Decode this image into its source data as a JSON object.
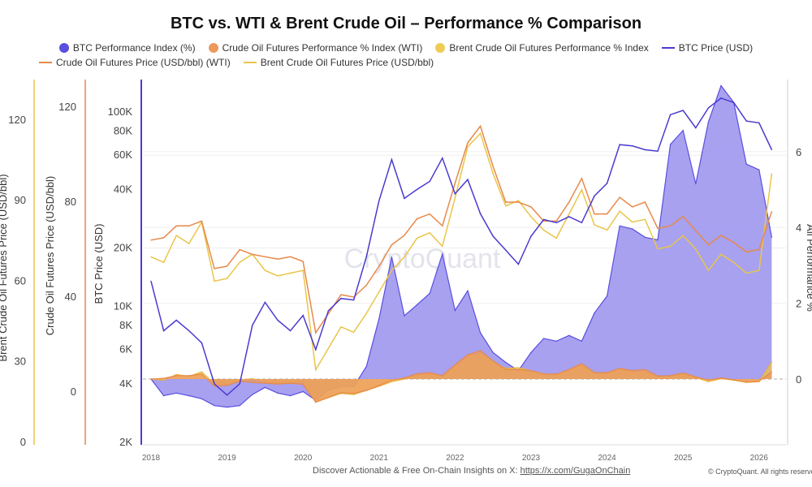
{
  "chart_data": {
    "type": "line",
    "title": "BTC vs. WTI & Brent Crude Oil – Performance % Comparison",
    "legend": [
      {
        "name": "BTC Performance Index (%)",
        "marker": "dot",
        "color": "#5b4fe0"
      },
      {
        "name": "Crude Oil Futures Performance % Index (WTI)",
        "marker": "dot",
        "color": "#ec9a5c"
      },
      {
        "name": "Brent Crude Oil Futures Performance % Index",
        "marker": "dot",
        "color": "#eecb55"
      },
      {
        "name": "BTC Price (USD)",
        "marker": "line",
        "color": "#4a3bd0"
      },
      {
        "name": "Crude Oil Futures Price (USD/bbl) (WTI)",
        "marker": "line",
        "color": "#e8894a"
      },
      {
        "name": "Brent Crude Oil Futures Price (USD/bbl)",
        "marker": "line",
        "color": "#e9c54a"
      }
    ],
    "legend_position": "top",
    "axes": {
      "brent": {
        "label": "Brent Crude Oil Futures Price (USD/bbl)",
        "ticks": [
          "0",
          "30",
          "60",
          "90",
          "120"
        ],
        "range": [
          0,
          120
        ],
        "color": "#e9c54a"
      },
      "wti": {
        "label": "Crude Oil Futures Price (USD/bbl)",
        "ticks": [
          "0",
          "40",
          "80",
          "120"
        ],
        "range": [
          -20,
          120
        ],
        "color": "#e8894a"
      },
      "btc": {
        "label": "BTC Price (USD)",
        "scale": "log",
        "ticks": [
          "2K",
          "4K",
          "6K",
          "8K",
          "10K",
          "20K",
          "40K",
          "60K",
          "80K",
          "100K"
        ],
        "tick_values": [
          2000,
          4000,
          6000,
          8000,
          10000,
          20000,
          40000,
          60000,
          80000,
          100000
        ],
        "range": [
          2000,
          110000
        ],
        "color": "#4a3bd0"
      },
      "perf": {
        "label": "All Performance %",
        "ticks": [
          "0",
          "2",
          "4",
          "6"
        ],
        "range": [
          -1.7,
          7.5
        ]
      },
      "x": {
        "ticks": [
          "2018",
          "2019",
          "2020",
          "2021",
          "2022",
          "2023",
          "2024",
          "2025",
          "2026"
        ]
      }
    },
    "dates": [
      "2018-01",
      "2018-03",
      "2018-05",
      "2018-07",
      "2018-09",
      "2018-11",
      "2019-01",
      "2019-03",
      "2019-05",
      "2019-07",
      "2019-09",
      "2019-11",
      "2020-01",
      "2020-03",
      "2020-05",
      "2020-07",
      "2020-09",
      "2020-11",
      "2021-01",
      "2021-03",
      "2021-05",
      "2021-07",
      "2021-09",
      "2021-11",
      "2022-01",
      "2022-03",
      "2022-05",
      "2022-07",
      "2022-09",
      "2022-11",
      "2023-01",
      "2023-03",
      "2023-05",
      "2023-07",
      "2023-09",
      "2023-11",
      "2024-01",
      "2024-03",
      "2024-05",
      "2024-07",
      "2024-09",
      "2024-11",
      "2025-01",
      "2025-03",
      "2025-05",
      "2025-07",
      "2025-09",
      "2025-11",
      "2026-01",
      "2026-03"
    ],
    "series": [
      {
        "name": "BTC Performance Index (%)",
        "values": [
          0,
          -0.44,
          -0.37,
          -0.44,
          -0.52,
          -0.7,
          -0.74,
          -0.7,
          -0.41,
          -0.22,
          -0.37,
          -0.44,
          -0.33,
          -0.56,
          -0.3,
          -0.19,
          -0.2,
          0.33,
          1.59,
          3.22,
          1.67,
          1.96,
          2.26,
          3.3,
          1.81,
          2.33,
          1.22,
          0.7,
          0.44,
          0.22,
          0.7,
          1.07,
          1.0,
          1.15,
          1.0,
          1.74,
          2.19,
          4.04,
          3.96,
          3.74,
          3.67,
          6.19,
          6.56,
          5.15,
          6.78,
          7.74,
          7.3,
          5.67,
          5.52,
          3.74
        ]
      },
      {
        "name": "Crude Oil Futures Performance % Index (WTI)",
        "values": [
          0,
          0.02,
          0.09,
          0.09,
          0.13,
          -0.19,
          -0.17,
          -0.06,
          -0.09,
          -0.11,
          -0.13,
          -0.11,
          -0.14,
          -0.61,
          -0.48,
          -0.36,
          -0.38,
          -0.3,
          -0.17,
          -0.03,
          0.03,
          0.14,
          0.17,
          0.09,
          0.38,
          0.64,
          0.75,
          0.48,
          0.25,
          0.25,
          0.22,
          0.13,
          0.13,
          0.25,
          0.41,
          0.17,
          0.17,
          0.28,
          0.22,
          0.25,
          0.08,
          0.09,
          0.16,
          0.06,
          -0.03,
          0.03,
          -0.02,
          -0.08,
          -0.06,
          0.19
        ]
      },
      {
        "name": "Brent Crude Oil Futures Performance % Index",
        "values": [
          0,
          -0.03,
          0.12,
          0.07,
          0.19,
          -0.13,
          -0.12,
          -0.03,
          0.01,
          -0.07,
          -0.1,
          -0.09,
          -0.07,
          -0.61,
          -0.49,
          -0.38,
          -0.41,
          -0.3,
          -0.19,
          -0.07,
          0,
          0.1,
          0.13,
          0.06,
          0.32,
          0.59,
          0.67,
          0.45,
          0.28,
          0.3,
          0.22,
          0.14,
          0.1,
          0.23,
          0.36,
          0.17,
          0.14,
          0.25,
          0.19,
          0.2,
          0.04,
          0.06,
          0.12,
          0.04,
          -0.07,
          0.01,
          -0.03,
          -0.09,
          -0.07,
          0.45
        ]
      },
      {
        "name": "BTC Price (USD)",
        "values": [
          13500,
          7500,
          8500,
          7500,
          6500,
          4000,
          3500,
          4000,
          8000,
          10500,
          8500,
          7500,
          9000,
          6000,
          9500,
          11000,
          10800,
          18000,
          35000,
          57000,
          36000,
          40000,
          44000,
          58000,
          38000,
          45000,
          30000,
          23000,
          19500,
          16500,
          23000,
          28000,
          27000,
          29000,
          27000,
          37000,
          43000,
          68000,
          67000,
          64000,
          63000,
          97000,
          102000,
          83000,
          105000,
          118000,
          112000,
          90000,
          88000,
          64000
        ]
      },
      {
        "name": "Crude Oil Futures Price (USD/bbl) (WTI)",
        "values": [
          64,
          65,
          70,
          70,
          72,
          52,
          53,
          60,
          58,
          57,
          56,
          57,
          55,
          25,
          33,
          41,
          40,
          45,
          53,
          62,
          66,
          73,
          75,
          70,
          88,
          105,
          112,
          95,
          80,
          80,
          78,
          72,
          72,
          80,
          90,
          75,
          75,
          82,
          78,
          80,
          69,
          70,
          74,
          68,
          62,
          66,
          63,
          59,
          60,
          76
        ]
      },
      {
        "name": "Brent Crude Oil Futures Price (USD/bbl)",
        "values": [
          69,
          67,
          77,
          74,
          82,
          60,
          61,
          67,
          70,
          64,
          62,
          63,
          64,
          27,
          35,
          43,
          41,
          48,
          56,
          64,
          69,
          76,
          78,
          73,
          91,
          110,
          115,
          100,
          88,
          90,
          84,
          79,
          76,
          85,
          94,
          81,
          79,
          86,
          82,
          83,
          72,
          73,
          77,
          72,
          64,
          70,
          67,
          63,
          64,
          100
        ]
      }
    ],
    "grid": true
  },
  "watermark": "CryptoQuant",
  "footer": {
    "text": "Discover Actionable & Free On-Chain Insights on X: ",
    "link": "https://x.com/GugaOnChain",
    "copyright": "© CryptoQuant. All rights reserved."
  }
}
